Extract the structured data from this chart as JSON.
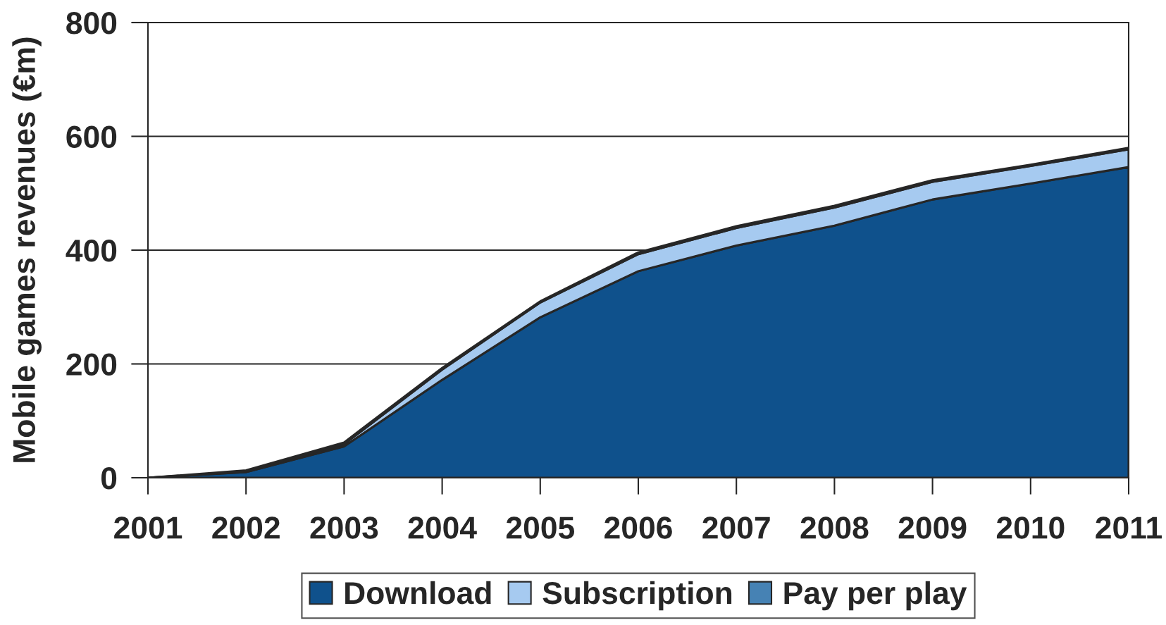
{
  "chart_data": {
    "type": "area",
    "stacked": true,
    "ylabel": "Mobile games revenues (€m)",
    "x": [
      2001,
      2002,
      2003,
      2004,
      2005,
      2006,
      2007,
      2008,
      2009,
      2010,
      2011
    ],
    "xlim": [
      2001,
      2011
    ],
    "xticks": [
      2001,
      2002,
      2003,
      2004,
      2005,
      2006,
      2007,
      2008,
      2009,
      2010,
      2011
    ],
    "ylim": [
      0,
      800
    ],
    "yticks": [
      0,
      200,
      400,
      600,
      800
    ],
    "grid": "y",
    "legend": "bottom",
    "series": [
      {
        "name": "Download",
        "color": "#0f518c",
        "values": [
          0,
          10,
          55,
          172,
          282,
          363,
          408,
          443,
          489,
          517,
          546
        ]
      },
      {
        "name": "Subscription",
        "color": "#a6caf0",
        "values": [
          0,
          1,
          4,
          18,
          26,
          30,
          31,
          32,
          31,
          31,
          31
        ]
      },
      {
        "name": "Pay per play",
        "color": "#4682b4",
        "values": [
          0,
          2,
          3,
          3,
          2,
          3,
          3,
          3,
          3,
          2,
          3
        ]
      }
    ]
  }
}
